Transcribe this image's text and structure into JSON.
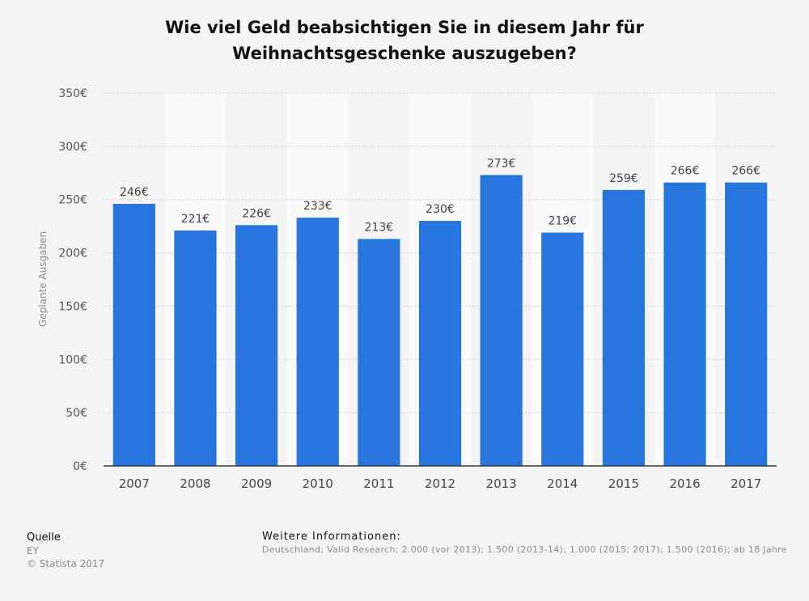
{
  "title_lines": [
    "Wie viel Geld beabsichtigen Sie in diesem Jahr für",
    "Weihnachtsgeschenke auszugeben?"
  ],
  "chart_data": {
    "type": "bar",
    "title": "Wie viel Geld beabsichtigen Sie in diesem Jahr für Weihnachtsgeschenke auszugeben?",
    "categories": [
      "2007",
      "2008",
      "2009",
      "2010",
      "2011",
      "2012",
      "2013",
      "2014",
      "2015",
      "2016",
      "2017"
    ],
    "values": [
      246,
      221,
      226,
      233,
      213,
      230,
      273,
      219,
      259,
      266,
      266
    ],
    "value_labels": [
      "246€",
      "221€",
      "226€",
      "233€",
      "213€",
      "230€",
      "273€",
      "219€",
      "259€",
      "266€",
      "266€"
    ],
    "xlabel": "",
    "ylabel": "Geplante Ausgaben",
    "ylim": [
      0,
      350
    ],
    "yticks": [
      0,
      50,
      100,
      150,
      200,
      250,
      300,
      350
    ],
    "ytick_labels": [
      "0€",
      "50€",
      "100€",
      "150€",
      "200€",
      "250€",
      "300€",
      "350€"
    ],
    "grid": true,
    "legend": "none",
    "bar_color": "#2876dd"
  },
  "footer": {
    "source_heading": "Quelle",
    "source_name": "EY",
    "copyright": "© Statista 2017",
    "info_heading": "Weitere Informationen:",
    "info_text": "Deutschland; Valid Research; 2.000 (vor 2013); 1.500 (2013-14); 1.000 (2015; 2017); 1.500 (2016); ab 18 Jahre"
  }
}
